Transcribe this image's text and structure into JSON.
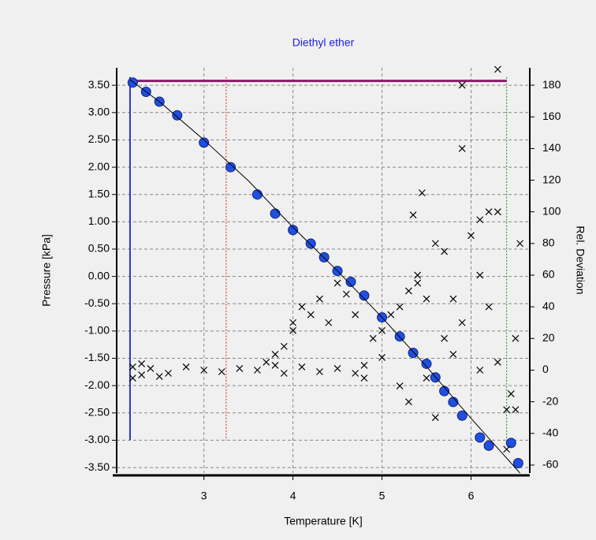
{
  "chart_data": {
    "type": "scatter",
    "title": "Diethyl ether",
    "xlabel": "Temperature [K]",
    "ylabel": "Pressure [kPa]",
    "y2label": "Rel. Deviation",
    "xlim": [
      2.02,
      6.66
    ],
    "ylim": [
      -3.6,
      3.82
    ],
    "y2lim": [
      -65,
      191
    ],
    "xticks": [
      3,
      4,
      5,
      6
    ],
    "yticks": [
      {
        "value": 3.5,
        "label": "3.50"
      },
      {
        "value": 3,
        "label": "3.00"
      },
      {
        "value": 2.5,
        "label": "2.50"
      },
      {
        "value": 2,
        "label": "2.00"
      },
      {
        "value": 1.5,
        "label": "1.50"
      },
      {
        "value": 1,
        "label": "1.00"
      },
      {
        "value": 0.5,
        "label": "0.50"
      },
      {
        "value": 0,
        "label": "0.00"
      },
      {
        "value": -0.5,
        "label": "-0.50"
      },
      {
        "value": -1,
        "label": "-1.00"
      },
      {
        "value": -1.5,
        "label": "-1.50"
      },
      {
        "value": -2,
        "label": "-2.00"
      },
      {
        "value": -2.5,
        "label": "-2.50"
      },
      {
        "value": -3,
        "label": "-3.00"
      },
      {
        "value": -3.5,
        "label": "-3.50"
      }
    ],
    "y2ticks": [
      180,
      160,
      140,
      120,
      100,
      80,
      60,
      40,
      20,
      0,
      -20,
      -40,
      -60
    ],
    "grid": true,
    "series": [
      {
        "color": "#2050e0",
        "marker": "circle",
        "x": [
          2.2,
          2.35,
          2.5,
          2.7,
          3.0,
          3.3,
          3.6,
          3.8,
          4.0,
          4.2,
          4.35,
          4.5,
          4.65,
          4.8,
          5.0,
          5.2,
          5.35,
          5.5,
          5.6,
          5.7,
          5.8,
          5.9,
          6.1,
          6.2,
          6.45,
          6.53
        ],
        "values": [
          3.55,
          3.38,
          3.2,
          2.95,
          2.45,
          2.0,
          1.5,
          1.15,
          0.85,
          0.6,
          0.35,
          0.1,
          -0.1,
          -0.35,
          -0.75,
          -1.1,
          -1.4,
          -1.6,
          -1.85,
          -2.1,
          -2.3,
          -2.55,
          -2.95,
          -3.1,
          -3.05,
          -3.42
        ]
      },
      {
        "color": "#000000",
        "marker": "line",
        "x": [
          2.17,
          2.5,
          3.0,
          3.5,
          4.0,
          4.5,
          5.0,
          5.5,
          6.0,
          6.55
        ],
        "values": [
          3.6,
          3.2,
          2.5,
          1.75,
          0.9,
          0.1,
          -0.75,
          -1.65,
          -2.6,
          -3.6
        ]
      },
      {
        "color": "#000000",
        "marker": "cross",
        "axis": "y2",
        "x": [
          2.2,
          2.3,
          2.4,
          2.6,
          2.8,
          3.0,
          3.2,
          3.4,
          3.6,
          3.8,
          3.9,
          4.1,
          4.3,
          4.5,
          4.7,
          4.8,
          2.2,
          2.3,
          2.5,
          3.7,
          3.8,
          3.9,
          4.0,
          4.0,
          4.1,
          4.2,
          4.3,
          4.4,
          4.5,
          4.6,
          4.7,
          4.8,
          4.9,
          5.0,
          5.0,
          5.1,
          5.2,
          5.2,
          5.3,
          5.3,
          5.4,
          5.4,
          5.5,
          5.5,
          5.6,
          5.6,
          5.7,
          5.7,
          5.8,
          5.8,
          5.9,
          5.9,
          5.9,
          6.0,
          6.1,
          6.1,
          6.1,
          6.2,
          6.2,
          6.3,
          6.3,
          6.3,
          6.4,
          6.4,
          6.45,
          6.5,
          6.5,
          6.55,
          5.45,
          5.35
        ],
        "values": [
          2,
          -3,
          1,
          -2,
          2,
          0,
          -1,
          1,
          0,
          3,
          -2,
          2,
          -1,
          1,
          -2,
          3,
          -5,
          4,
          -4,
          5,
          10,
          15,
          25,
          30,
          40,
          35,
          45,
          30,
          55,
          48,
          35,
          -5,
          20,
          8,
          25,
          35,
          40,
          -10,
          50,
          -20,
          55,
          60,
          45,
          -5,
          -30,
          80,
          75,
          20,
          10,
          45,
          30,
          140,
          180,
          85,
          60,
          0,
          95,
          100,
          40,
          100,
          5,
          190,
          -25,
          -50,
          -15,
          -25,
          20,
          80,
          112,
          98
        ]
      }
    ],
    "vlines": [
      {
        "x": 2.17,
        "color": "#3030d0",
        "style": "solid",
        "y": [
          3.65,
          -3.0
        ]
      },
      {
        "x": 3.25,
        "color": "#e02020",
        "style": "dotted",
        "y": [
          3.65,
          -3.0
        ]
      },
      {
        "x": 6.4,
        "color": "#109010",
        "style": "dotted",
        "y": [
          3.65,
          -3.0
        ]
      }
    ],
    "hlines": [
      {
        "y": 3.58,
        "color": "#8a1a6a",
        "style": "solid",
        "x": [
          2.17,
          6.4
        ]
      }
    ]
  }
}
